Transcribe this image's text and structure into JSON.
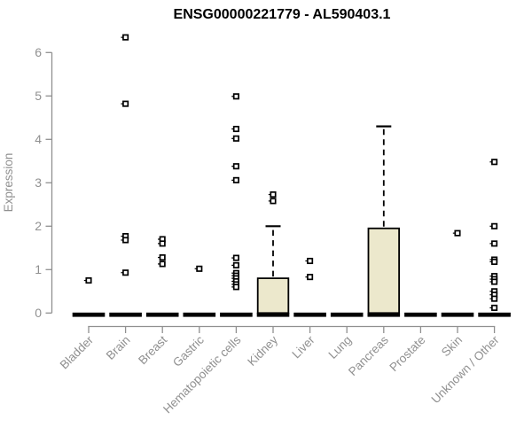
{
  "page": {
    "background": "#ffffff"
  },
  "chart_data": {
    "type": "boxplot",
    "title": "ENSG00000221779 - AL590403.1",
    "xlabel": "",
    "ylabel": "Expression",
    "ylim": [
      0,
      6.6
    ],
    "yticks": [
      0,
      1,
      2,
      3,
      4,
      5,
      6
    ],
    "grid": false,
    "legend": "none",
    "categories": [
      "Bladder",
      "Brain",
      "Breast",
      "Gastric",
      "Hematopoietic cells",
      "Kidney",
      "Liver",
      "Lung",
      "Pancreas",
      "Prostate",
      "Skin",
      "Unknown / Other"
    ],
    "groups": [
      {
        "name": "Bladder",
        "q1": 0,
        "median": 0,
        "q3": 0,
        "whisker_low": 0,
        "whisker_high": 0,
        "outliers": [
          0.75
        ]
      },
      {
        "name": "Brain",
        "q1": 0,
        "median": 0,
        "q3": 0,
        "whisker_low": 0,
        "whisker_high": 0,
        "outliers": [
          6.35,
          4.82,
          1.77,
          1.68,
          0.93
        ]
      },
      {
        "name": "Breast",
        "q1": 0,
        "median": 0,
        "q3": 0,
        "whisker_low": 0,
        "whisker_high": 0,
        "outliers": [
          1.7,
          1.6,
          1.28,
          1.13
        ]
      },
      {
        "name": "Gastric",
        "q1": 0,
        "median": 0,
        "q3": 0,
        "whisker_low": 0,
        "whisker_high": 0,
        "outliers": [
          1.02
        ]
      },
      {
        "name": "Hematopoietic cells",
        "q1": 0,
        "median": 0,
        "q3": 0,
        "whisker_low": 0,
        "whisker_high": 0,
        "outliers": [
          4.99,
          4.24,
          4.02,
          3.38,
          3.06,
          1.27,
          1.1,
          0.92,
          0.86,
          0.8,
          0.73,
          0.66,
          0.6
        ]
      },
      {
        "name": "Kidney",
        "q1": 0,
        "median": 0,
        "q3": 0.8,
        "whisker_low": 0,
        "whisker_high": 2.0,
        "outliers": [
          2.73,
          2.58
        ]
      },
      {
        "name": "Liver",
        "q1": 0,
        "median": 0,
        "q3": 0,
        "whisker_low": 0,
        "whisker_high": 0,
        "outliers": [
          1.2,
          0.83
        ]
      },
      {
        "name": "Lung",
        "q1": 0,
        "median": 0,
        "q3": 0,
        "whisker_low": 0,
        "whisker_high": 0,
        "outliers": []
      },
      {
        "name": "Pancreas",
        "q1": 0,
        "median": 0,
        "q3": 1.95,
        "whisker_low": 0,
        "whisker_high": 4.3,
        "outliers": []
      },
      {
        "name": "Prostate",
        "q1": 0,
        "median": 0,
        "q3": 0,
        "whisker_low": 0,
        "whisker_high": 0,
        "outliers": []
      },
      {
        "name": "Skin",
        "q1": 0,
        "median": 0,
        "q3": 0,
        "whisker_low": 0,
        "whisker_high": 0,
        "outliers": [
          1.84
        ]
      },
      {
        "name": "Unknown / Other",
        "q1": 0,
        "median": 0,
        "q3": 0,
        "whisker_low": 0,
        "whisker_high": 0,
        "outliers": [
          3.48,
          2.0,
          1.6,
          1.23,
          1.18,
          0.85,
          0.78,
          0.72,
          0.5,
          0.42,
          0.33,
          0.12
        ]
      }
    ],
    "colors": {
      "box_fill": "#ECE8CC",
      "box_stroke": "#000000",
      "median": "#000000",
      "whisker": "#000000",
      "outlier": "#000000",
      "axis": "#909090",
      "tick_labels": "#909090",
      "title": "#000000",
      "background": "#ffffff"
    }
  }
}
